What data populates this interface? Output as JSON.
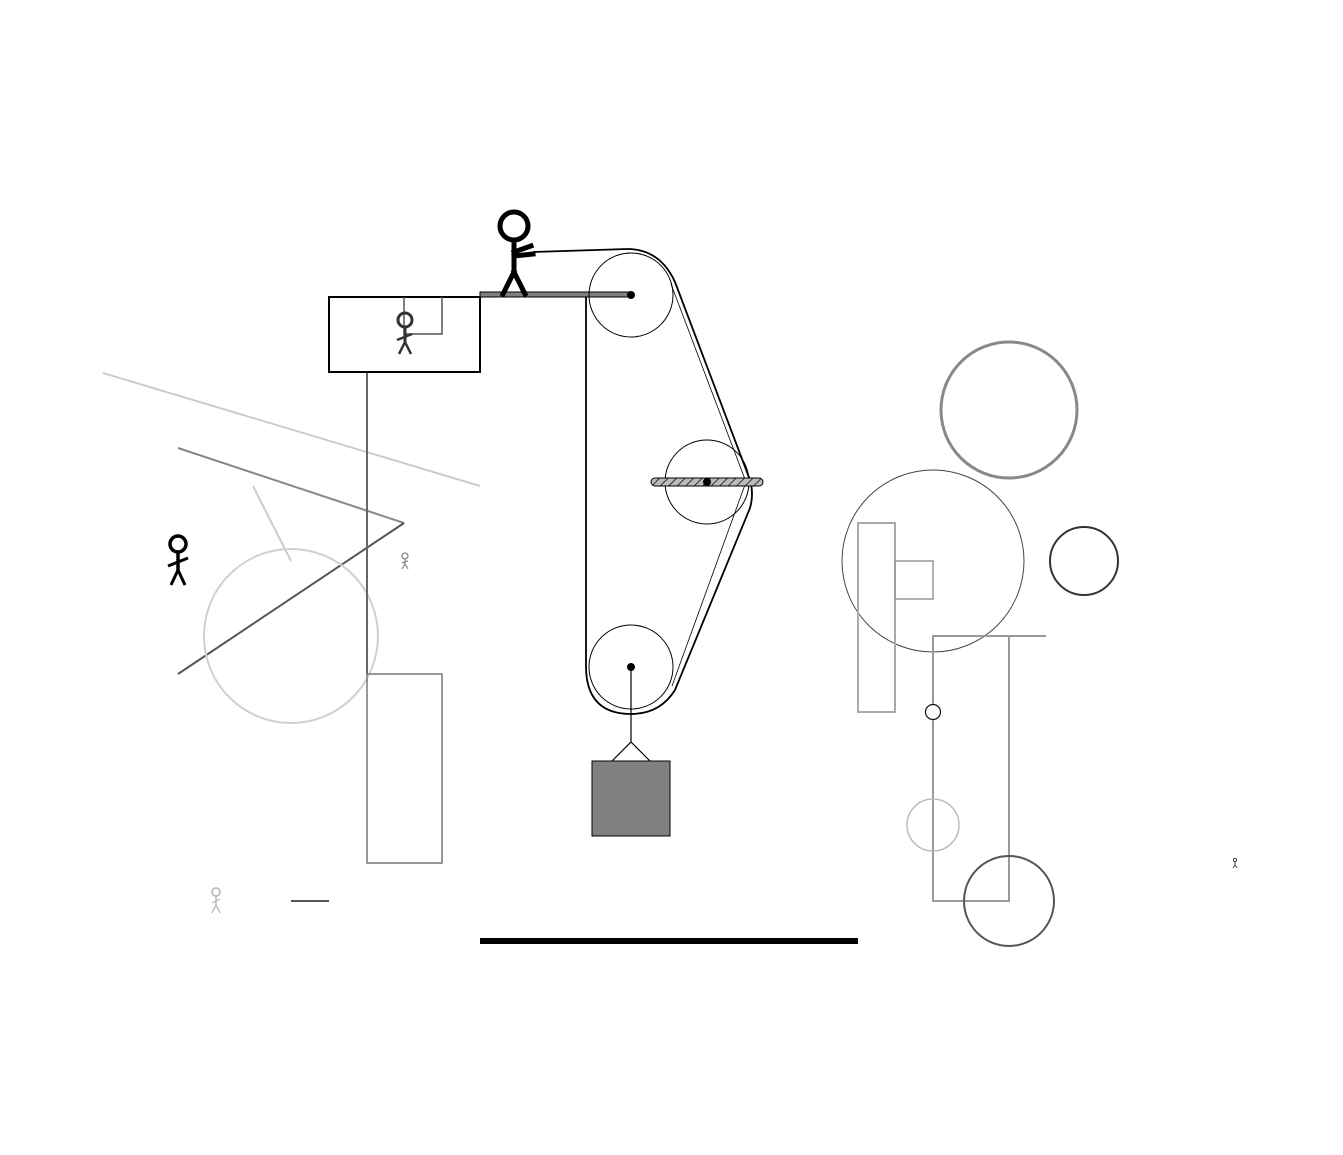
{
  "colors": {
    "background": "#ffffff",
    "ink": "#000000",
    "block_fill": "#808080",
    "hatch_fill": "#999999",
    "ghost_light": "#cccccc",
    "ghost_mid": "#999999",
    "ghost_dark": "#555555"
  },
  "figures": [
    {
      "name": "stick-figure-pulling-rope",
      "role": "person pulling rope"
    },
    {
      "name": "stick-figure-in-box",
      "role": "person in box"
    },
    {
      "name": "stick-figure-left",
      "role": "person"
    },
    {
      "name": "stick-figure-small",
      "role": "person"
    },
    {
      "name": "stick-figure-faded",
      "role": "person"
    },
    {
      "name": "stick-figure-tiny",
      "role": "person"
    }
  ],
  "parts": {
    "pulleys": [
      "top-pulley",
      "middle-pulley",
      "bottom-pulley"
    ],
    "belt": "rope-belt",
    "platform": "platform-beam",
    "load": "hanging-block",
    "ground": "ground-bar"
  }
}
